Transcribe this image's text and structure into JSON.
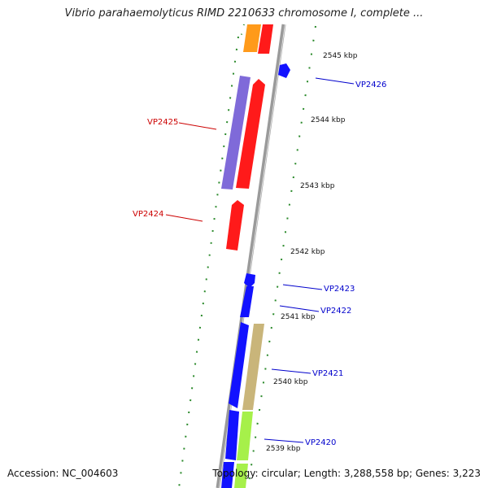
{
  "title": "Vibrio parahaemolyticus RIMD 2210633 chromosome I, complete ...",
  "accession": "Accession: NC_004603",
  "stats": "Topology: circular; Length: 3,288,558 bp; Genes: 3,223",
  "colors": {
    "backbone": "#8a8a8a",
    "tick": "#2b8a2b",
    "red_gene": "#ff1a1a",
    "purple_gene": "#7f6ad9",
    "blue_gene": "#1212ff",
    "orange_gene": "#ff9a1a",
    "tan_gene": "#c9b57a",
    "lime_gene": "#a6f04a",
    "red_label": "#cc0000",
    "blue_label": "#0000cc"
  },
  "ticks": [
    "2545 kbp",
    "2544 kbp",
    "2543 kbp",
    "2542 kbp",
    "2541 kbp",
    "2540 kbp",
    "2539 kbp"
  ],
  "labels": {
    "VP2426": "VP2426",
    "VP2425": "VP2425",
    "VP2424": "VP2424",
    "VP2423": "VP2423",
    "VP2422": "VP2422",
    "VP2421": "VP2421",
    "VP2420": "VP2420"
  }
}
